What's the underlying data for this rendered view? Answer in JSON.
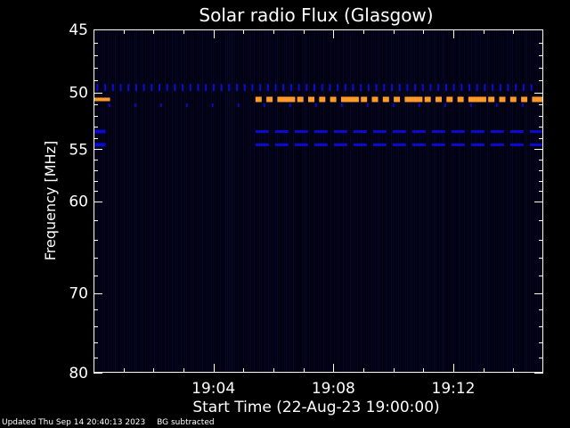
{
  "chart_data": {
    "type": "heatmap",
    "title": "Solar radio Flux (Glasgow)",
    "xlabel": "Start Time (22-Aug-23 19:00:00)",
    "ylabel": "Frequency [MHz]",
    "x_range_minutes": [
      0,
      15
    ],
    "x_ticks": [
      {
        "minute": 4,
        "label": "19:04"
      },
      {
        "minute": 8,
        "label": "19:08"
      },
      {
        "minute": 12,
        "label": "19:12"
      }
    ],
    "y_scale": "log",
    "ylim": [
      45,
      80
    ],
    "y_ticks": [
      45,
      50,
      55,
      60,
      70,
      80
    ],
    "y_minor_ticks": [
      46,
      47,
      48,
      49,
      51,
      52,
      53,
      54,
      56,
      57,
      58,
      59,
      62,
      64,
      66,
      68,
      72,
      74,
      76,
      78
    ],
    "background_color": "#000010",
    "bands": [
      {
        "freq": 49.6,
        "color": "#0c0cd6",
        "style": "dots",
        "x_range": [
          0.1,
          14.8
        ]
      },
      {
        "freq": 50.6,
        "color": "#ff9a2a",
        "style": "thick-dashes",
        "x_range": [
          5.4,
          15
        ]
      },
      {
        "freq": 50.6,
        "color": "#ff9a2a",
        "style": "segment",
        "x_range": [
          0,
          0.55
        ]
      },
      {
        "freq": 51.1,
        "color": "#0a0ac8",
        "style": "sparse-dots",
        "x_range": [
          0.5,
          15
        ]
      },
      {
        "freq": 53.4,
        "color": "#0a0ad0",
        "style": "dashes",
        "x_range": [
          5.4,
          15
        ]
      },
      {
        "freq": 53.4,
        "color": "#0a0ad0",
        "style": "segment",
        "x_range": [
          0,
          0.4
        ]
      },
      {
        "freq": 54.6,
        "color": "#0a0ad0",
        "style": "dashes",
        "x_range": [
          5.4,
          15
        ]
      },
      {
        "freq": 54.6,
        "color": "#0a0ad0",
        "style": "segment",
        "x_range": [
          0,
          0.4
        ]
      }
    ]
  },
  "footer": {
    "updated": "Updated Thu Sep 14 20:40:13 2023",
    "note": "BG subtracted"
  },
  "colors": {
    "axes": "#ffffff",
    "text": "#ffffff"
  }
}
